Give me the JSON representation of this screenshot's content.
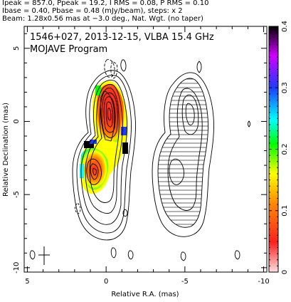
{
  "header": {
    "line1": "Ipeak = 857.0, Ppeak = 19.2, I RMS = 0.08, P RMS = 0.10",
    "line2": "Ibase = 0.40, Pbase = 0.48 (mJy/beam), steps: x 2",
    "line3": "Beam: 1.28x0.56 mas at −3.0 deg., Nat. Wgt. (no taper)"
  },
  "chart_data": {
    "type": "heatmap",
    "title": "1546+027, 2013-12-15, VLBA 15.4 GHz",
    "subtitle": "MOJAVE Program",
    "xlabel": "Relative R.A. (mas)",
    "ylabel": "Relative Declination (mas)",
    "xlim": [
      5.2,
      -10.2
    ],
    "ylim": [
      -10.3,
      6.5
    ],
    "xticks": [
      5,
      0,
      -5,
      -10
    ],
    "yticks": [
      5,
      0,
      -5,
      -10
    ],
    "colorbar": {
      "range": [
        0,
        0.4
      ],
      "ticks": [
        "0",
        "0.1",
        "0.2",
        "0.3",
        "0.4"
      ],
      "colors": [
        "#ffc8c8",
        "#ff2020",
        "#ff8a00",
        "#ffff00",
        "#00ff00",
        "#00ffff",
        "#1e3cff",
        "#d000ff",
        "#000000"
      ]
    },
    "beam": {
      "major_mas": 1.28,
      "minor_mas": 0.56,
      "pa_deg": -3.0
    },
    "grid": false
  }
}
